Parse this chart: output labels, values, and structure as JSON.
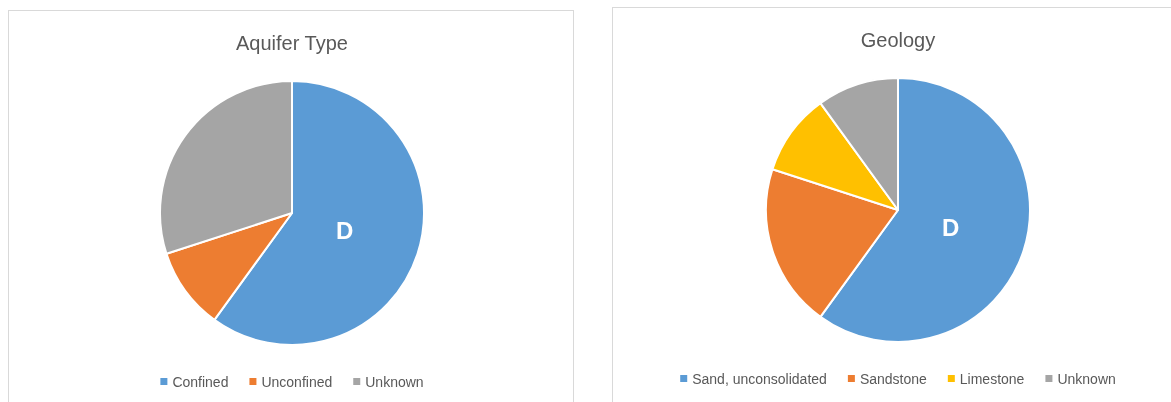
{
  "chart_data": [
    {
      "type": "pie",
      "title": "Aquifer Type",
      "categories": [
        "Confined",
        "Unconfined",
        "Unknown"
      ],
      "values": [
        60,
        10,
        30
      ],
      "colors": [
        "#5b9bd5",
        "#ed7d31",
        "#a5a5a5"
      ],
      "legend": "bottom",
      "annotations": [
        "D"
      ]
    },
    {
      "type": "pie",
      "title": "Geology",
      "categories": [
        "Sand, unconsolidated",
        "Sandstone",
        "Limestone",
        "Unknown"
      ],
      "values": [
        60,
        20,
        10,
        10
      ],
      "colors": [
        "#5b9bd5",
        "#ed7d31",
        "#ffc000",
        "#a5a5a5"
      ],
      "legend": "bottom",
      "annotations": [
        "D"
      ]
    }
  ]
}
